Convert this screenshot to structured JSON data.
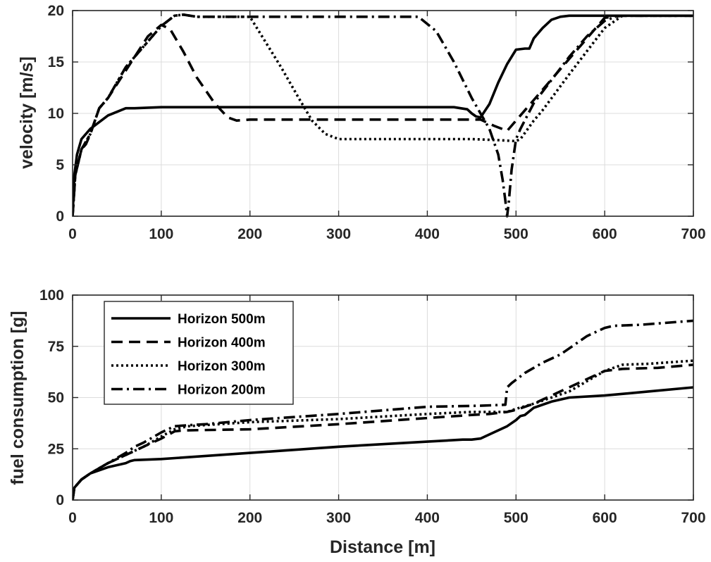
{
  "chart_data": [
    {
      "type": "line",
      "ylabel": "velocity [m/s]",
      "xlabel": "",
      "xlim": [
        0,
        700
      ],
      "ylim": [
        0,
        20
      ],
      "xticks": [
        0,
        100,
        200,
        300,
        400,
        500,
        600,
        700
      ],
      "yticks": [
        0,
        5,
        10,
        15,
        20
      ],
      "grid": true,
      "series": [
        {
          "name": "Horizon 500m",
          "dash": "solid",
          "x": [
            0,
            2,
            5,
            10,
            20,
            40,
            60,
            70,
            100,
            200,
            300,
            400,
            430,
            445,
            450,
            455,
            460,
            470,
            480,
            490,
            500,
            510,
            515,
            520,
            530,
            540,
            550,
            560,
            580,
            620,
            700
          ],
          "y": [
            0,
            4,
            6,
            7.5,
            8.5,
            9.8,
            10.5,
            10.5,
            10.6,
            10.6,
            10.6,
            10.6,
            10.6,
            10.4,
            10,
            9.7,
            9.6,
            10.9,
            13,
            14.8,
            16.2,
            16.3,
            16.3,
            17.3,
            18.3,
            19.1,
            19.4,
            19.5,
            19.5,
            19.5,
            19.5
          ]
        },
        {
          "name": "Horizon 400m",
          "dash": "dashed",
          "x": [
            0,
            3,
            10,
            15,
            20,
            30,
            40,
            55,
            70,
            85,
            100,
            110,
            125,
            140,
            160,
            175,
            185,
            200,
            300,
            400,
            460,
            475,
            490,
            500,
            520,
            540,
            560,
            580,
            600,
            620,
            700
          ],
          "y": [
            0,
            4,
            6.5,
            7,
            8,
            10.5,
            11.5,
            13.5,
            15.5,
            17.5,
            18.6,
            18.2,
            16,
            13.5,
            11,
            9.6,
            9.3,
            9.4,
            9.4,
            9.4,
            9.4,
            8.8,
            8.3,
            9.3,
            11.3,
            13.3,
            15.3,
            17.3,
            19.3,
            19.5,
            19.5
          ]
        },
        {
          "name": "Horizon 300m",
          "dash": "dotted",
          "x": [
            0,
            3,
            10,
            20,
            30,
            40,
            60,
            80,
            100,
            115,
            125,
            140,
            160,
            200,
            215,
            235,
            255,
            270,
            285,
            300,
            350,
            400,
            450,
            480,
            500,
            505,
            520,
            530,
            560,
            600,
            620,
            700
          ],
          "y": [
            0,
            4,
            6.5,
            8,
            10.5,
            11.5,
            14.5,
            16.5,
            18.5,
            19.5,
            19.6,
            19.4,
            19.4,
            19.4,
            17.3,
            14.5,
            11.5,
            9.3,
            8,
            7.5,
            7.5,
            7.5,
            7.5,
            7.4,
            7.3,
            7.5,
            9.3,
            10.3,
            13.8,
            18.3,
            19.5,
            19.5
          ]
        },
        {
          "name": "Horizon 200m",
          "dash": "dashdot",
          "x": [
            0,
            3,
            10,
            20,
            30,
            40,
            60,
            80,
            100,
            115,
            125,
            140,
            200,
            300,
            390,
            410,
            430,
            450,
            460,
            470,
            480,
            485,
            488,
            490,
            492,
            495,
            500,
            505,
            520,
            560,
            580,
            600,
            615,
            700
          ],
          "y": [
            0,
            4,
            6.5,
            8,
            10.5,
            11.5,
            14.5,
            16.5,
            18.5,
            19.5,
            19.6,
            19.4,
            19.4,
            19.4,
            19.4,
            18,
            15,
            11.5,
            10,
            8.5,
            6,
            3.5,
            1.5,
            0,
            1.5,
            4.5,
            7.5,
            8.5,
            11,
            15.5,
            17.5,
            19,
            19.5,
            19.5
          ]
        }
      ]
    },
    {
      "type": "line",
      "ylabel": "fuel consumption [g]",
      "xlabel": "Distance [m]",
      "xlim": [
        0,
        700
      ],
      "ylim": [
        0,
        100
      ],
      "xticks": [
        0,
        100,
        200,
        300,
        400,
        500,
        600,
        700
      ],
      "yticks": [
        0,
        25,
        50,
        75,
        100
      ],
      "grid": true,
      "legend": "top-left",
      "series": [
        {
          "name": "Horizon 500m",
          "dash": "solid",
          "x": [
            0,
            2,
            10,
            20,
            40,
            60,
            65,
            70,
            100,
            200,
            300,
            400,
            440,
            450,
            460,
            470,
            490,
            500,
            505,
            510,
            520,
            540,
            560,
            600,
            650,
            700
          ],
          "y": [
            0,
            6,
            10,
            13,
            16,
            18,
            19,
            19.5,
            20,
            23,
            26,
            28.5,
            29.5,
            29.5,
            30,
            32,
            36,
            39,
            41,
            41.5,
            45,
            48,
            50,
            51,
            53,
            55
          ]
        },
        {
          "name": "Horizon 400m",
          "dash": "dashed",
          "x": [
            0,
            2,
            10,
            20,
            40,
            60,
            80,
            100,
            115,
            125,
            200,
            300,
            400,
            450,
            470,
            480,
            490,
            500,
            520,
            540,
            560,
            600,
            620,
            660,
            700
          ],
          "y": [
            0,
            6,
            10,
            13,
            18,
            22,
            26,
            30,
            33.5,
            34,
            34.5,
            37,
            40,
            41.5,
            42,
            42.5,
            43,
            44,
            47,
            51,
            55,
            63,
            64,
            64.5,
            66
          ]
        },
        {
          "name": "Horizon 300m",
          "dash": "dotted",
          "x": [
            0,
            2,
            10,
            20,
            40,
            60,
            80,
            100,
            115,
            130,
            200,
            300,
            400,
            450,
            480,
            490,
            500,
            520,
            540,
            560,
            580,
            600,
            620,
            650,
            700
          ],
          "y": [
            0,
            6,
            10,
            13,
            18,
            22,
            26,
            31,
            34.5,
            36,
            38,
            39.5,
            42,
            43,
            43,
            43,
            44.5,
            47,
            50,
            53,
            58,
            63,
            66,
            66.5,
            68
          ]
        },
        {
          "name": "Horizon 200m",
          "dash": "dashdot",
          "x": [
            0,
            2,
            10,
            20,
            40,
            60,
            70,
            80,
            100,
            115,
            130,
            150,
            200,
            300,
            400,
            460,
            488,
            490,
            495,
            510,
            530,
            550,
            560,
            580,
            600,
            610,
            640,
            700
          ],
          "y": [
            0,
            6,
            10,
            13,
            18,
            23,
            26,
            28,
            33,
            36,
            36.5,
            37,
            39,
            42,
            45.5,
            46,
            46.5,
            55,
            57,
            62,
            67,
            71,
            74,
            80,
            84,
            85,
            85.5,
            87.5
          ]
        }
      ]
    }
  ]
}
